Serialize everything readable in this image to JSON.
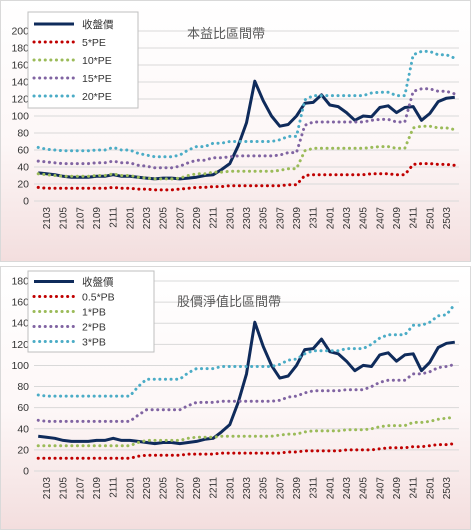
{
  "chart_data": [
    {
      "type": "line",
      "title": "本益比區間帶",
      "ylim": [
        0,
        200
      ],
      "yticks": [
        0,
        20,
        40,
        60,
        80,
        100,
        120,
        140,
        160,
        180,
        200
      ],
      "grid": true,
      "legend": "top-left",
      "x": [
        "2102",
        "2103",
        "2104",
        "2105",
        "2106",
        "2107",
        "2108",
        "2109",
        "2110",
        "2111",
        "2112",
        "2201",
        "2202",
        "2203",
        "2204",
        "2205",
        "2206",
        "2207",
        "2208",
        "2209",
        "2210",
        "2211",
        "2212",
        "2301",
        "2302",
        "2303",
        "2304",
        "2305",
        "2306",
        "2307",
        "2308",
        "2309",
        "2310",
        "2311",
        "2312",
        "2401",
        "2402",
        "2403",
        "2404",
        "2405",
        "2406",
        "2407",
        "2408",
        "2409",
        "2410",
        "2411",
        "2412",
        "2501",
        "2502",
        "2503",
        "2504"
      ],
      "xtick_labels": [
        "2103",
        "2105",
        "2107",
        "2109",
        "2111",
        "2201",
        "2203",
        "2205",
        "2207",
        "2209",
        "2211",
        "2301",
        "2303",
        "2305",
        "2307",
        "2309",
        "2311",
        "2401",
        "2403",
        "2405",
        "2407",
        "2409",
        "2411",
        "2501",
        "2503"
      ],
      "series": [
        {
          "name": "收盤價",
          "color": "#0f2b5b",
          "style": "solid",
          "values": [
            33,
            32,
            31,
            29,
            28,
            28,
            28,
            29,
            29,
            31,
            29,
            29,
            28,
            27,
            26,
            27,
            27,
            26,
            27,
            28,
            30,
            31,
            37,
            44,
            65,
            92,
            141,
            118,
            100,
            88,
            90,
            100,
            115,
            116,
            125,
            113,
            111,
            104,
            95,
            100,
            99,
            110,
            112,
            104,
            110,
            111,
            95,
            103,
            117,
            121,
            122
          ]
        },
        {
          "name": "5*PE",
          "color": "#c00000",
          "style": "dotted",
          "values": [
            16,
            15,
            15,
            15,
            15,
            15,
            15,
            15,
            15,
            16,
            15,
            15,
            14,
            14,
            13,
            13,
            13,
            14,
            15,
            16,
            16,
            17,
            17,
            18,
            18,
            18,
            18,
            18,
            18,
            18,
            19,
            19,
            30,
            31,
            31,
            31,
            31,
            31,
            31,
            31,
            32,
            32,
            32,
            31,
            31,
            43,
            44,
            44,
            43,
            43,
            42
          ]
        },
        {
          "name": "10*PE",
          "color": "#9bbb59",
          "style": "dotted",
          "values": [
            32,
            31,
            30,
            29,
            29,
            29,
            29,
            30,
            30,
            32,
            30,
            30,
            28,
            27,
            26,
            26,
            26,
            27,
            30,
            32,
            32,
            34,
            34,
            35,
            35,
            35,
            35,
            35,
            35,
            36,
            38,
            38,
            59,
            62,
            62,
            62,
            62,
            62,
            62,
            62,
            63,
            64,
            64,
            62,
            62,
            86,
            88,
            88,
            86,
            86,
            84
          ]
        },
        {
          "name": "15*PE",
          "color": "#8064a2",
          "style": "dotted",
          "values": [
            47,
            46,
            45,
            44,
            44,
            44,
            44,
            45,
            45,
            47,
            45,
            45,
            42,
            41,
            39,
            39,
            39,
            41,
            45,
            48,
            48,
            51,
            51,
            52,
            53,
            53,
            53,
            53,
            53,
            54,
            57,
            57,
            89,
            93,
            93,
            93,
            93,
            93,
            93,
            93,
            95,
            96,
            96,
            93,
            93,
            129,
            132,
            132,
            129,
            129,
            126
          ]
        },
        {
          "name": "20*PE",
          "color": "#4bacc6",
          "style": "dotted",
          "values": [
            63,
            61,
            60,
            59,
            59,
            59,
            59,
            60,
            60,
            63,
            60,
            60,
            56,
            54,
            52,
            52,
            52,
            54,
            60,
            64,
            64,
            68,
            68,
            70,
            70,
            70,
            70,
            70,
            70,
            72,
            76,
            76,
            119,
            124,
            124,
            124,
            124,
            124,
            124,
            124,
            127,
            128,
            128,
            124,
            124,
            172,
            176,
            176,
            172,
            172,
            168
          ]
        }
      ]
    },
    {
      "type": "line",
      "title": "股價淨值比區間帶",
      "ylim": [
        0,
        180
      ],
      "yticks": [
        0,
        20,
        40,
        60,
        80,
        100,
        120,
        140,
        160,
        180
      ],
      "grid": true,
      "legend": "top-left",
      "x": [
        "2102",
        "2103",
        "2104",
        "2105",
        "2106",
        "2107",
        "2108",
        "2109",
        "2110",
        "2111",
        "2112",
        "2201",
        "2202",
        "2203",
        "2204",
        "2205",
        "2206",
        "2207",
        "2208",
        "2209",
        "2210",
        "2211",
        "2212",
        "2301",
        "2302",
        "2303",
        "2304",
        "2305",
        "2306",
        "2307",
        "2308",
        "2309",
        "2310",
        "2311",
        "2312",
        "2401",
        "2402",
        "2403",
        "2404",
        "2405",
        "2406",
        "2407",
        "2408",
        "2409",
        "2410",
        "2411",
        "2412",
        "2501",
        "2502",
        "2503",
        "2504"
      ],
      "xtick_labels": [
        "2103",
        "2105",
        "2107",
        "2109",
        "2111",
        "2201",
        "2203",
        "2205",
        "2207",
        "2209",
        "2211",
        "2301",
        "2303",
        "2305",
        "2307",
        "2309",
        "2311",
        "2401",
        "2403",
        "2405",
        "2407",
        "2409",
        "2411",
        "2501",
        "2503"
      ],
      "series": [
        {
          "name": "收盤價",
          "color": "#0f2b5b",
          "style": "solid",
          "values": [
            33,
            32,
            31,
            29,
            28,
            28,
            28,
            29,
            29,
            31,
            29,
            29,
            28,
            27,
            26,
            27,
            27,
            26,
            27,
            28,
            30,
            31,
            37,
            44,
            65,
            92,
            141,
            118,
            100,
            88,
            90,
            100,
            115,
            116,
            125,
            113,
            111,
            104,
            95,
            100,
            99,
            110,
            112,
            104,
            110,
            111,
            95,
            103,
            117,
            121,
            122
          ]
        },
        {
          "name": "0.5*PB",
          "color": "#c00000",
          "style": "dotted",
          "values": [
            12,
            12,
            12,
            12,
            12,
            12,
            12,
            12,
            12,
            12,
            12,
            12,
            14,
            15,
            15,
            15,
            15,
            15,
            16,
            16,
            16,
            16,
            17,
            17,
            17,
            17,
            17,
            17,
            17,
            17,
            18,
            18,
            19,
            19,
            19,
            19,
            19,
            20,
            20,
            20,
            20,
            21,
            22,
            22,
            22,
            23,
            23,
            24,
            25,
            25,
            26
          ]
        },
        {
          "name": "1*PB",
          "color": "#9bbb59",
          "style": "dotted",
          "values": [
            24,
            24,
            24,
            24,
            24,
            24,
            24,
            24,
            24,
            24,
            24,
            24,
            27,
            29,
            29,
            29,
            29,
            29,
            31,
            32,
            32,
            32,
            33,
            33,
            33,
            33,
            33,
            33,
            33,
            34,
            35,
            35,
            37,
            38,
            38,
            38,
            38,
            39,
            39,
            39,
            40,
            42,
            43,
            43,
            43,
            46,
            46,
            47,
            49,
            50,
            51
          ]
        },
        {
          "name": "2*PB",
          "color": "#8064a2",
          "style": "dotted",
          "values": [
            48,
            47,
            47,
            47,
            47,
            47,
            47,
            47,
            47,
            47,
            47,
            47,
            53,
            58,
            58,
            58,
            58,
            58,
            62,
            65,
            65,
            65,
            66,
            66,
            66,
            66,
            66,
            66,
            66,
            67,
            70,
            71,
            74,
            76,
            76,
            76,
            76,
            77,
            77,
            77,
            80,
            84,
            86,
            86,
            86,
            92,
            92,
            94,
            98,
            99,
            101
          ]
        },
        {
          "name": "3*PB",
          "color": "#4bacc6",
          "style": "dotted",
          "values": [
            72,
            71,
            71,
            71,
            71,
            71,
            71,
            71,
            71,
            71,
            71,
            71,
            80,
            87,
            87,
            87,
            87,
            87,
            93,
            97,
            97,
            97,
            99,
            99,
            99,
            99,
            99,
            99,
            99,
            101,
            105,
            106,
            111,
            114,
            114,
            114,
            114,
            116,
            116,
            116,
            120,
            126,
            129,
            129,
            129,
            138,
            138,
            141,
            147,
            148,
            158
          ]
        }
      ]
    }
  ]
}
